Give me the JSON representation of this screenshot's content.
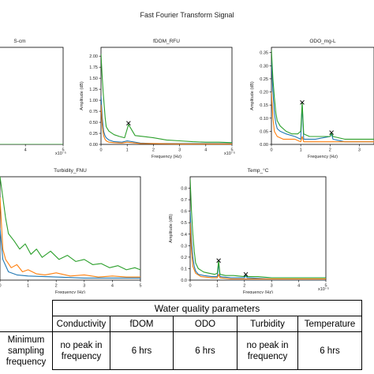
{
  "figure_title": "Fast Fourier Transform Signal",
  "series_colors": [
    "#1f77b4",
    "#ff7f0e",
    "#2ca02c"
  ],
  "chart_data": [
    {
      "type": "line",
      "title": "S-cm",
      "xlabel": "",
      "ylabel": "",
      "x_ticks": [
        "3",
        "4",
        "5"
      ],
      "x_multiplier": "x10⁻⁵",
      "y_ticks": [],
      "visible_xlim": [
        2.7,
        5
      ],
      "ylim": [
        0,
        1
      ],
      "series": [
        {
          "color": "#1f77b4",
          "x": [
            2.7,
            5
          ],
          "y": [
            0.0,
            0.0
          ]
        },
        {
          "color": "#ff7f0e",
          "x": [
            2.7,
            5
          ],
          "y": [
            0.0,
            0.0
          ]
        },
        {
          "color": "#2ca02c",
          "x": [
            2.7,
            5
          ],
          "y": [
            0.0,
            0.0
          ]
        }
      ],
      "peaks": []
    },
    {
      "type": "line",
      "title": "fDOM_RFU",
      "xlabel": "Frequency (Hz)",
      "ylabel": "Amplitude (dB)",
      "x_ticks": [
        "0",
        "1",
        "2",
        "3",
        "4",
        "5"
      ],
      "x_multiplier": "x10⁻⁵",
      "y_ticks": [
        "0.00",
        "0.25",
        "0.50",
        "0.75",
        "1.00",
        "1.25",
        "1.50",
        "1.75",
        "2.00"
      ],
      "xlim": [
        0,
        5
      ],
      "ylim": [
        0,
        2.2
      ],
      "series": [
        {
          "color": "#1f77b4",
          "x": [
            0,
            0.05,
            0.1,
            0.15,
            0.2,
            0.3,
            0.5,
            0.8,
            1.0,
            1.5,
            2,
            3,
            4,
            5
          ],
          "y": [
            1.1,
            0.6,
            0.3,
            0.2,
            0.15,
            0.1,
            0.06,
            0.05,
            0.08,
            0.03,
            0.02,
            0.02,
            0.02,
            0.02
          ]
        },
        {
          "color": "#ff7f0e",
          "x": [
            0,
            0.05,
            0.1,
            0.15,
            0.2,
            0.3,
            0.5,
            0.8,
            1.0,
            1.5,
            2,
            3,
            4,
            5
          ],
          "y": [
            0.9,
            0.4,
            0.2,
            0.12,
            0.08,
            0.05,
            0.04,
            0.03,
            0.05,
            0.02,
            0.02,
            0.01,
            0.01,
            0.01
          ]
        },
        {
          "color": "#2ca02c",
          "x": [
            0,
            0.04,
            0.08,
            0.12,
            0.16,
            0.2,
            0.3,
            0.5,
            0.7,
            0.9,
            1.05,
            1.3,
            1.6,
            2.0,
            2.5,
            3,
            3.5,
            4,
            4.5,
            5
          ],
          "y": [
            2.05,
            1.6,
            1.2,
            0.9,
            0.6,
            0.4,
            0.3,
            0.22,
            0.18,
            0.15,
            0.45,
            0.2,
            0.18,
            0.15,
            0.1,
            0.08,
            0.06,
            0.05,
            0.05,
            0.04
          ]
        }
      ],
      "peaks": [
        {
          "x": 1.05,
          "y": 0.48
        }
      ]
    },
    {
      "type": "line",
      "title": "ODO_mg-L",
      "xlabel": "Frequency (Hz)",
      "ylabel": "Amplitude (dB)",
      "x_ticks": [
        "0",
        "1",
        "2",
        "3"
      ],
      "x_multiplier": "",
      "y_ticks": [
        "0.00",
        "0.05",
        "0.10",
        "0.15",
        "0.20",
        "0.25",
        "0.30",
        "0.35"
      ],
      "xlim": [
        0,
        3.5
      ],
      "ylim": [
        0,
        0.37
      ],
      "series": [
        {
          "color": "#1f77b4",
          "x": [
            0,
            0.05,
            0.1,
            0.15,
            0.2,
            0.3,
            0.5,
            0.8,
            1.0,
            1.05,
            1.1,
            1.5,
            2.0,
            2.05,
            2.1,
            2.5,
            3,
            3.5
          ],
          "y": [
            0.33,
            0.2,
            0.12,
            0.08,
            0.06,
            0.05,
            0.04,
            0.03,
            0.02,
            0.15,
            0.02,
            0.02,
            0.03,
            0.04,
            0.02,
            0.01,
            0.01,
            0.01
          ]
        },
        {
          "color": "#ff7f0e",
          "x": [
            0,
            0.05,
            0.1,
            0.2,
            0.4,
            0.8,
            1.0,
            1.05,
            1.1,
            1.5,
            2,
            2.5,
            3,
            3.5
          ],
          "y": [
            0.2,
            0.1,
            0.05,
            0.03,
            0.02,
            0.02,
            0.01,
            0.03,
            0.01,
            0.01,
            0.01,
            0.01,
            0.01,
            0.01
          ]
        },
        {
          "color": "#2ca02c",
          "x": [
            0,
            0.05,
            0.1,
            0.15,
            0.2,
            0.3,
            0.5,
            0.7,
            0.9,
            1.0,
            1.05,
            1.1,
            1.3,
            1.6,
            2.0,
            2.05,
            2.1,
            2.5,
            3,
            3.5
          ],
          "y": [
            0.36,
            0.25,
            0.18,
            0.12,
            0.09,
            0.07,
            0.05,
            0.04,
            0.04,
            0.05,
            0.16,
            0.04,
            0.03,
            0.03,
            0.03,
            0.045,
            0.03,
            0.02,
            0.02,
            0.02
          ]
        }
      ],
      "peaks": [
        {
          "x": 1.05,
          "y": 0.16
        },
        {
          "x": 2.05,
          "y": 0.045
        }
      ]
    },
    {
      "type": "line",
      "title": "Turbidity_FNU",
      "xlabel": "Frequency (Hz)",
      "ylabel": "",
      "x_ticks": [
        "0",
        "1",
        "2",
        "3",
        "4",
        "5"
      ],
      "x_multiplier": "",
      "y_ticks": [],
      "xlim": [
        0,
        5
      ],
      "ylim": [
        0,
        1
      ],
      "series": [
        {
          "color": "#1f77b4",
          "x": [
            0,
            0.1,
            0.3,
            0.6,
            1,
            2,
            3,
            4,
            5
          ],
          "y": [
            0.5,
            0.2,
            0.08,
            0.05,
            0.04,
            0.03,
            0.02,
            0.02,
            0.02
          ]
        },
        {
          "color": "#ff7f0e",
          "x": [
            0,
            0.1,
            0.2,
            0.4,
            0.6,
            0.8,
            1.0,
            1.3,
            1.6,
            2,
            2.5,
            3,
            3.5,
            4,
            4.5,
            5
          ],
          "y": [
            0.8,
            0.3,
            0.2,
            0.12,
            0.15,
            0.08,
            0.1,
            0.06,
            0.05,
            0.07,
            0.04,
            0.05,
            0.03,
            0.04,
            0.03,
            0.03
          ]
        },
        {
          "color": "#2ca02c",
          "x": [
            0,
            0.1,
            0.2,
            0.3,
            0.5,
            0.7,
            0.9,
            1.1,
            1.3,
            1.5,
            1.8,
            2.1,
            2.4,
            2.7,
            3.0,
            3.3,
            3.6,
            3.9,
            4.2,
            4.5,
            4.8,
            5
          ],
          "y": [
            1.0,
            0.8,
            0.6,
            0.45,
            0.38,
            0.3,
            0.35,
            0.25,
            0.3,
            0.22,
            0.28,
            0.2,
            0.24,
            0.18,
            0.2,
            0.15,
            0.16,
            0.12,
            0.14,
            0.1,
            0.12,
            0.1
          ]
        }
      ],
      "peaks": []
    },
    {
      "type": "line",
      "title": "Temp_°C",
      "xlabel": "Frequency (Hz)",
      "ylabel": "Amplitude (dB)",
      "x_ticks": [
        "0",
        "1",
        "2",
        "3",
        "4",
        "5"
      ],
      "x_multiplier": "x10⁻⁵",
      "y_ticks": [
        "0.0",
        "0.1",
        "0.2",
        "0.3",
        "0.4",
        "0.5",
        "0.6",
        "0.7",
        "0.8"
      ],
      "xlim": [
        0,
        5
      ],
      "ylim": [
        0,
        0.9
      ],
      "series": [
        {
          "color": "#1f77b4",
          "x": [
            0,
            0.05,
            0.1,
            0.15,
            0.2,
            0.3,
            0.5,
            0.8,
            1.0,
            1.05,
            1.1,
            1.5,
            2.0,
            2.05,
            2.1,
            3,
            4,
            5
          ],
          "y": [
            0.6,
            0.35,
            0.2,
            0.12,
            0.08,
            0.05,
            0.04,
            0.03,
            0.03,
            0.15,
            0.03,
            0.02,
            0.02,
            0.04,
            0.02,
            0.01,
            0.01,
            0.01
          ]
        },
        {
          "color": "#ff7f0e",
          "x": [
            0,
            0.05,
            0.1,
            0.2,
            0.4,
            0.8,
            1.0,
            1.05,
            1.1,
            1.5,
            2,
            3,
            4,
            5
          ],
          "y": [
            0.5,
            0.25,
            0.12,
            0.06,
            0.03,
            0.02,
            0.02,
            0.05,
            0.02,
            0.01,
            0.01,
            0.01,
            0.01,
            0.01
          ]
        },
        {
          "color": "#2ca02c",
          "x": [
            0,
            0.05,
            0.1,
            0.15,
            0.2,
            0.3,
            0.5,
            0.7,
            0.9,
            1.0,
            1.05,
            1.1,
            1.3,
            1.6,
            2.0,
            2.05,
            2.1,
            2.5,
            3,
            3.5,
            4,
            4.5,
            5
          ],
          "y": [
            0.88,
            0.6,
            0.4,
            0.25,
            0.15,
            0.1,
            0.07,
            0.06,
            0.05,
            0.06,
            0.17,
            0.05,
            0.04,
            0.04,
            0.03,
            0.05,
            0.03,
            0.03,
            0.02,
            0.02,
            0.02,
            0.02,
            0.02
          ]
        }
      ],
      "peaks": [
        {
          "x": 1.05,
          "y": 0.17
        },
        {
          "x": 2.05,
          "y": 0.05
        }
      ]
    }
  ],
  "table": {
    "group_header": "Water quality parameters",
    "row_label": "Minimum sampling frequency",
    "columns": [
      "Conductivity",
      "fDOM",
      "ODO",
      "Turbidity",
      "Temperature"
    ],
    "values": [
      "no peak in frequency",
      "6 hrs",
      "6 hrs",
      "no peak in frequency",
      "6 hrs"
    ]
  }
}
